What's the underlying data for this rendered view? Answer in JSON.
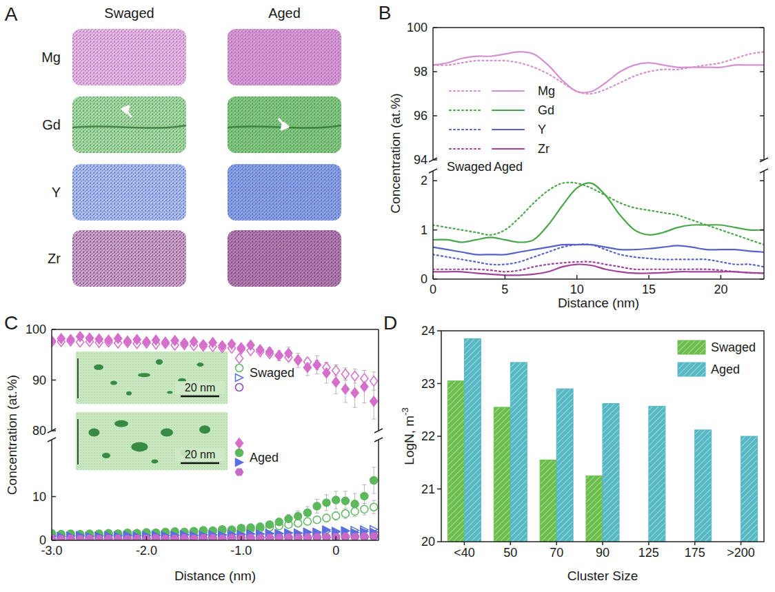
{
  "chart_data": [
    {
      "type": "atom_map",
      "panel": "A",
      "columns": [
        "Swaged",
        "Aged"
      ],
      "rows": [
        "Mg",
        "Gd",
        "Y",
        "Zr"
      ],
      "colors": [
        "#b65cb6",
        "#3a9e3a",
        "#4466cc",
        "#7a2e7a"
      ]
    },
    {
      "type": "line",
      "panel": "B",
      "xlabel": "Distance (nm)",
      "ylabel": "Concentration (at.%)",
      "x": [
        0,
        1,
        2,
        3,
        4,
        5,
        6,
        7,
        8,
        9,
        10,
        11,
        12,
        13,
        14,
        15,
        16,
        17,
        18,
        19,
        20,
        21,
        22,
        23
      ],
      "xlim": [
        0,
        23
      ],
      "xticks": [
        0,
        5,
        10,
        15,
        20
      ],
      "ylim": [
        0,
        100
      ],
      "ybreak": [
        2.2,
        94
      ],
      "yticks": [
        0,
        1,
        2,
        94,
        96,
        98,
        100
      ],
      "legend": "center-left",
      "legend_columns": [
        "Swaged",
        "Aged"
      ],
      "series": [
        {
          "name": "Mg",
          "color": "#d690cf",
          "line_style": "dotted",
          "values": [
            98.3,
            98.3,
            98.4,
            98.5,
            98.5,
            98.5,
            98.4,
            98.2,
            97.9,
            97.5,
            97.1,
            97.0,
            97.2,
            97.5,
            97.8,
            98.0,
            98.1,
            98.1,
            98.2,
            98.3,
            98.4,
            98.6,
            98.8,
            98.9
          ]
        },
        {
          "name": "Mg",
          "color": "#d690cf",
          "line_style": "solid",
          "values": [
            98.3,
            98.4,
            98.6,
            98.7,
            98.7,
            98.8,
            98.9,
            98.8,
            98.3,
            97.6,
            97.1,
            97.1,
            97.5,
            98.0,
            98.3,
            98.4,
            98.3,
            98.2,
            98.2,
            98.2,
            98.2,
            98.3,
            98.3,
            98.3
          ]
        },
        {
          "name": "Gd",
          "color": "#4aa64a",
          "line_style": "dotted",
          "values": [
            1.1,
            1.05,
            1.0,
            0.95,
            0.9,
            1.0,
            1.25,
            1.55,
            1.8,
            1.95,
            1.95,
            1.85,
            1.7,
            1.55,
            1.45,
            1.4,
            1.35,
            1.3,
            1.2,
            1.1,
            1.0,
            0.9,
            0.8,
            0.7
          ]
        },
        {
          "name": "Gd",
          "color": "#4aa64a",
          "line_style": "solid",
          "values": [
            0.8,
            0.8,
            0.75,
            0.8,
            0.85,
            0.8,
            0.75,
            0.8,
            1.1,
            1.5,
            1.85,
            1.95,
            1.7,
            1.3,
            1.0,
            0.9,
            0.95,
            1.05,
            1.1,
            1.1,
            1.1,
            1.05,
            1.0,
            1.0
          ]
        },
        {
          "name": "Y",
          "color": "#5563c8",
          "line_style": "dotted",
          "values": [
            0.5,
            0.45,
            0.4,
            0.35,
            0.3,
            0.3,
            0.35,
            0.45,
            0.55,
            0.65,
            0.7,
            0.7,
            0.6,
            0.5,
            0.45,
            0.42,
            0.4,
            0.4,
            0.4,
            0.4,
            0.35,
            0.3,
            0.3,
            0.25
          ]
        },
        {
          "name": "Y",
          "color": "#5563c8",
          "line_style": "solid",
          "values": [
            0.65,
            0.6,
            0.55,
            0.5,
            0.5,
            0.5,
            0.55,
            0.6,
            0.65,
            0.7,
            0.7,
            0.7,
            0.65,
            0.6,
            0.6,
            0.62,
            0.65,
            0.68,
            0.65,
            0.6,
            0.6,
            0.6,
            0.57,
            0.55
          ]
        },
        {
          "name": "Zr",
          "color": "#a0429c",
          "line_style": "dotted",
          "values": [
            0.2,
            0.2,
            0.2,
            0.2,
            0.18,
            0.15,
            0.18,
            0.25,
            0.3,
            0.33,
            0.35,
            0.35,
            0.3,
            0.25,
            0.2,
            0.2,
            0.2,
            0.2,
            0.2,
            0.2,
            0.18,
            0.15,
            0.13,
            0.12
          ]
        },
        {
          "name": "Zr",
          "color": "#a0429c",
          "line_style": "solid",
          "values": [
            0.15,
            0.15,
            0.15,
            0.12,
            0.1,
            0.08,
            0.08,
            0.1,
            0.15,
            0.25,
            0.3,
            0.28,
            0.2,
            0.15,
            0.12,
            0.12,
            0.13,
            0.15,
            0.15,
            0.15,
            0.15,
            0.15,
            0.13,
            0.12
          ]
        }
      ]
    },
    {
      "type": "scatter",
      "panel": "C",
      "xlabel": "Distance (nm)",
      "ylabel": "Concentration (at.%)",
      "x": [
        -3.0,
        -2.9,
        -2.8,
        -2.7,
        -2.6,
        -2.5,
        -2.4,
        -2.3,
        -2.2,
        -2.1,
        -2.0,
        -1.9,
        -1.8,
        -1.7,
        -1.6,
        -1.5,
        -1.4,
        -1.3,
        -1.2,
        -1.1,
        -1.0,
        -0.9,
        -0.8,
        -0.7,
        -0.6,
        -0.5,
        -0.4,
        -0.3,
        -0.2,
        -0.1,
        0,
        0.1,
        0.2,
        0.3,
        0.4
      ],
      "xlim": [
        -3.0,
        0.45
      ],
      "xticks": [
        {
          "value": -3,
          "label": "-3.0"
        },
        {
          "value": -2,
          "label": "-2.0"
        },
        {
          "value": -1,
          "label": "-1.0"
        },
        0
      ],
      "ylim": [
        0,
        100
      ],
      "ybreak": [
        23,
        80
      ],
      "yticks": [
        0,
        10,
        80,
        90,
        100
      ],
      "legend": "center",
      "annotations": [
        "20 nm",
        "20 nm"
      ],
      "series": [
        {
          "name": "Swaged",
          "color": "#d56fcb",
          "marker": "open-diamond",
          "values": [
            97.5,
            97.6,
            97.7,
            97.5,
            97.6,
            97.4,
            97.5,
            97.3,
            97.4,
            97.2,
            97.3,
            97.1,
            97.2,
            96.9,
            97.0,
            96.8,
            96.7,
            96.6,
            96.4,
            96.3,
            96.1,
            95.8,
            95.6,
            95.2,
            94.9,
            94.5,
            94.0,
            93.6,
            93.0,
            92.5,
            91.9,
            91.2,
            90.8,
            90.3,
            89.8
          ],
          "errors": [
            0.2,
            0.2,
            0.2,
            0.2,
            0.2,
            0.2,
            0.2,
            0.2,
            0.2,
            0.2,
            0.2,
            0.2,
            0.2,
            0.2,
            0.2,
            0.2,
            0.2,
            0.2,
            0.2,
            0.2,
            0.3,
            0.3,
            0.4,
            0.4,
            0.5,
            0.6,
            0.7,
            0.8,
            0.9,
            1.0,
            1.1,
            1.2,
            1.4,
            1.6,
            1.8
          ]
        },
        {
          "name": "Swaged",
          "color": "#5cb85c",
          "marker": "open-circle",
          "values": [
            1.3,
            1.3,
            1.4,
            1.4,
            1.4,
            1.5,
            1.5,
            1.5,
            1.6,
            1.6,
            1.7,
            1.7,
            1.8,
            1.8,
            1.9,
            1.9,
            2.0,
            2.1,
            2.2,
            2.3,
            2.4,
            2.6,
            2.8,
            3.0,
            3.3,
            3.6,
            3.9,
            4.3,
            4.7,
            5.1,
            5.6,
            6.1,
            6.6,
            7.1,
            7.6
          ],
          "errors": [
            0.1,
            0.1,
            0.1,
            0.1,
            0.1,
            0.1,
            0.1,
            0.1,
            0.1,
            0.1,
            0.1,
            0.1,
            0.1,
            0.1,
            0.1,
            0.1,
            0.1,
            0.1,
            0.1,
            0.1,
            0.2,
            0.2,
            0.3,
            0.3,
            0.4,
            0.5,
            0.6,
            0.7,
            0.8,
            0.9,
            1.0,
            1.1,
            1.2,
            1.3,
            1.5
          ]
        },
        {
          "name": "Swaged",
          "color": "#5b6ee0",
          "marker": "open-triangle",
          "values": [
            0.9,
            0.9,
            1.0,
            0.9,
            1.0,
            1.0,
            1.0,
            1.1,
            1.0,
            1.1,
            1.1,
            1.1,
            1.2,
            1.1,
            1.2,
            1.2,
            1.3,
            1.2,
            1.3,
            1.3,
            1.4,
            1.4,
            1.5,
            1.5,
            1.6,
            1.7,
            1.7,
            1.8,
            1.9,
            2.0,
            2.1,
            2.2,
            2.3,
            2.4,
            2.5
          ]
        },
        {
          "name": "Swaged",
          "color": "#8e44ad",
          "marker": "open-circle",
          "values": [
            0.3,
            0.3,
            0.3,
            0.3,
            0.3,
            0.3,
            0.3,
            0.3,
            0.3,
            0.3,
            0.4,
            0.4,
            0.4,
            0.4,
            0.4,
            0.4,
            0.4,
            0.4,
            0.4,
            0.5,
            0.5,
            0.5,
            0.5,
            0.5,
            0.6,
            0.6,
            0.6,
            0.6,
            0.7,
            0.7,
            0.7,
            0.8,
            0.8,
            0.8,
            0.9
          ]
        },
        {
          "name": "Aged",
          "color": "#d56fcb",
          "marker": "diamond",
          "values": [
            97.8,
            98.2,
            98.0,
            98.6,
            98.3,
            98.1,
            97.9,
            98.2,
            97.7,
            98.0,
            97.6,
            97.9,
            97.5,
            97.8,
            97.3,
            97.6,
            97.0,
            97.4,
            96.8,
            97.1,
            96.4,
            96.9,
            96.0,
            95.6,
            94.8,
            95.3,
            93.9,
            92.5,
            93.0,
            91.4,
            89.6,
            88.2,
            87.5,
            88.7,
            85.8
          ],
          "errors": [
            0.3,
            0.3,
            0.3,
            0.3,
            0.3,
            0.3,
            0.3,
            0.3,
            0.3,
            0.3,
            0.3,
            0.3,
            0.3,
            0.3,
            0.3,
            0.3,
            0.3,
            0.3,
            0.3,
            0.3,
            0.4,
            0.5,
            0.6,
            0.8,
            1.0,
            1.2,
            1.4,
            1.6,
            1.8,
            2.0,
            2.3,
            2.6,
            2.9,
            3.2,
            3.5
          ]
        },
        {
          "name": "Aged",
          "color": "#5cb85c",
          "marker": "circle",
          "values": [
            1.6,
            1.4,
            1.5,
            1.3,
            1.5,
            1.4,
            1.6,
            1.5,
            1.7,
            1.6,
            1.8,
            1.7,
            1.9,
            2.0,
            1.8,
            2.1,
            2.3,
            2.2,
            2.5,
            2.4,
            2.8,
            2.9,
            3.1,
            3.6,
            4.2,
            4.9,
            5.5,
            6.3,
            7.8,
            8.6,
            9.2,
            9.0,
            8.3,
            10.1,
            13.7
          ],
          "errors": [
            0.2,
            0.2,
            0.2,
            0.2,
            0.2,
            0.2,
            0.2,
            0.2,
            0.2,
            0.2,
            0.2,
            0.2,
            0.2,
            0.2,
            0.2,
            0.2,
            0.2,
            0.2,
            0.2,
            0.2,
            0.3,
            0.4,
            0.5,
            0.6,
            0.8,
            1.0,
            1.2,
            1.4,
            1.6,
            1.8,
            2.0,
            2.2,
            2.4,
            2.6,
            3.0
          ]
        },
        {
          "name": "Aged",
          "color": "#5b6ee0",
          "marker": "triangle",
          "values": [
            1.0,
            0.9,
            1.0,
            1.1,
            0.9,
            1.0,
            1.1,
            1.0,
            1.2,
            1.0,
            1.1,
            1.2,
            1.1,
            1.2,
            1.3,
            1.1,
            1.2,
            1.3,
            1.2,
            1.4,
            1.3,
            1.5,
            1.4,
            1.6,
            1.5,
            1.7,
            1.6,
            1.9,
            1.7,
            2.4,
            1.9,
            2.1,
            1.8,
            2.0,
            1.9
          ]
        },
        {
          "name": "Aged",
          "color": "#c86ac8",
          "marker": "hexagon",
          "values": [
            0.4,
            0.3,
            0.4,
            0.3,
            0.4,
            0.3,
            0.4,
            0.4,
            0.3,
            0.4,
            0.4,
            0.5,
            0.4,
            0.4,
            0.5,
            0.4,
            0.5,
            0.5,
            0.4,
            0.5,
            0.5,
            0.6,
            0.5,
            0.6,
            0.6,
            0.7,
            0.6,
            0.7,
            0.8,
            0.7,
            0.8,
            0.9,
            0.8,
            0.9,
            1.0
          ]
        }
      ]
    },
    {
      "type": "bar",
      "panel": "D",
      "xlabel": "Cluster Size",
      "ylabel": "LogN, m",
      "ylabel_superscript": "-3",
      "categories": [
        "<40",
        "50",
        "70",
        "90",
        "125",
        "175",
        ">200"
      ],
      "ylim": [
        20,
        24
      ],
      "yticks": [
        20,
        21,
        22,
        23,
        24
      ],
      "legend": "upper-right",
      "series": [
        {
          "name": "Swaged",
          "color": "#6cbf4c",
          "values": [
            23.05,
            22.55,
            21.55,
            21.25,
            null,
            null,
            null
          ]
        },
        {
          "name": "Aged",
          "color": "#56b8c4",
          "values": [
            23.85,
            23.4,
            22.9,
            22.62,
            22.57,
            22.12,
            22.0
          ]
        }
      ]
    }
  ]
}
